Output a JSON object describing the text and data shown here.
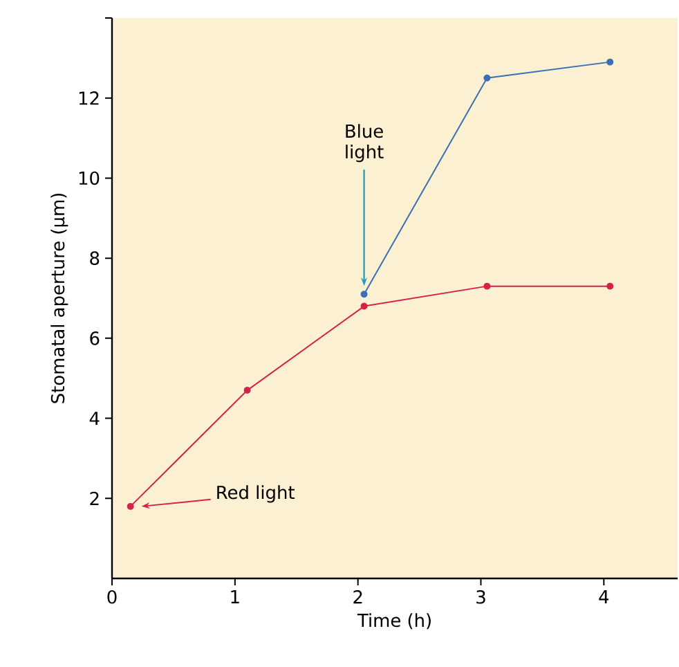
{
  "chart_data": {
    "type": "line",
    "xlabel": "Time (h)",
    "ylabel": "Stomatal aperture (µm)",
    "xlim": [
      0,
      4.6
    ],
    "xticks": [
      0,
      1,
      2,
      3,
      4
    ],
    "ylim": [
      0,
      14
    ],
    "yticks": [
      2,
      4,
      6,
      8,
      10,
      12,
      {
        "value": 14,
        "label": null
      }
    ],
    "marker": "circle",
    "series": [
      {
        "color": "#d4234a",
        "x": [
          0.15,
          1.1,
          2.05,
          3.05,
          4.05
        ],
        "values": [
          1.8,
          4.7,
          6.8,
          7.3,
          7.3
        ]
      },
      {
        "color": "#3a6fb5",
        "x": [
          2.05,
          3.05,
          4.05
        ],
        "values": [
          7.1,
          12.5,
          12.9
        ]
      }
    ],
    "annotations": [
      "Blue light",
      "Red light"
    ]
  }
}
